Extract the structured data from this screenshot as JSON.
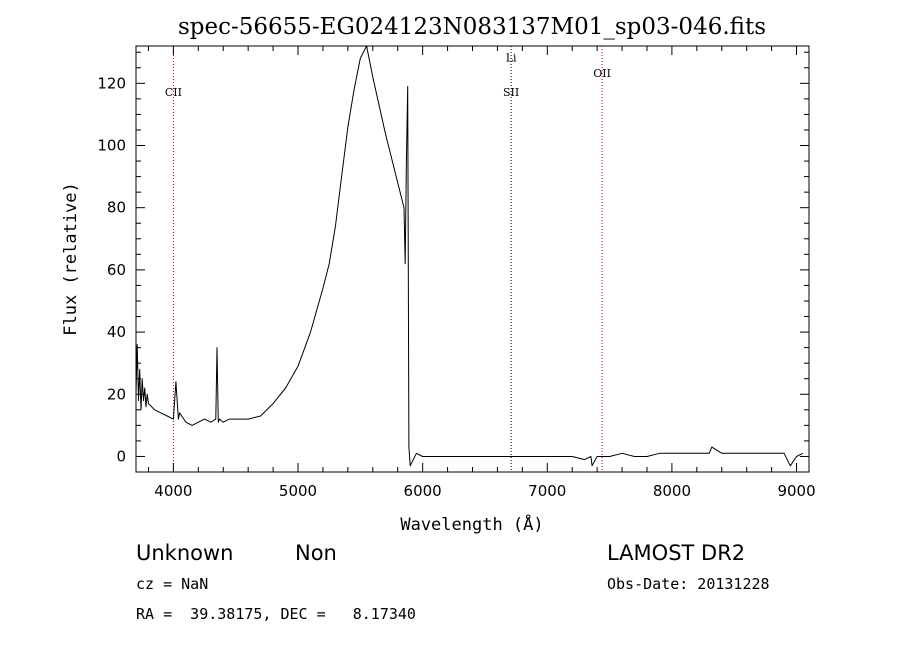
{
  "chart_data": {
    "type": "line",
    "title": "spec-56655-EG024123N083137M01_sp03-046.fits",
    "xlabel": "Wavelength (Å)",
    "ylabel": "Flux (relative)",
    "xlim": [
      3700,
      9100
    ],
    "ylim": [
      -5,
      132
    ],
    "x_ticks": [
      4000,
      5000,
      6000,
      7000,
      8000,
      9000
    ],
    "y_ticks": [
      0,
      20,
      40,
      60,
      80,
      100,
      120
    ],
    "grid": false,
    "line_color": "#000000",
    "series": [
      {
        "x": [
          3700,
          3710,
          3720,
          3730,
          3740,
          3750,
          3760,
          3770,
          3780,
          3790,
          3800,
          3850,
          3900,
          3950,
          4000,
          4020,
          4040,
          4050,
          4100,
          4150,
          4200,
          4250,
          4300,
          4340,
          4350,
          4360,
          4370,
          4400,
          4450,
          4500,
          4600,
          4700,
          4800,
          4900,
          5000,
          5100,
          5200,
          5250,
          5300,
          5350,
          5400,
          5450,
          5500,
          5550,
          5600,
          5700,
          5850,
          5860,
          5870,
          5880,
          5890,
          5900,
          5950,
          6000,
          6100,
          6200,
          6300,
          6400,
          6500,
          6600,
          6700,
          6800,
          6900,
          7000,
          7100,
          7200,
          7300,
          7350,
          7360,
          7400,
          7500,
          7600,
          7700,
          7800,
          7900,
          8000,
          8100,
          8200,
          8300,
          8320,
          8400,
          8500,
          8600,
          8700,
          8800,
          8900,
          8950,
          9000,
          9050
        ],
        "y": [
          20,
          36,
          18,
          28,
          15,
          25,
          18,
          22,
          16,
          20,
          17,
          15,
          14,
          13,
          12,
          24,
          12,
          14,
          11,
          10,
          11,
          12,
          11,
          12,
          35,
          11,
          12,
          11,
          12,
          12,
          12,
          13,
          17,
          22,
          29,
          40,
          54,
          62,
          74,
          90,
          106,
          118,
          128,
          132,
          122,
          104,
          80,
          62,
          95,
          119,
          3,
          -3,
          1,
          0,
          0,
          0,
          0,
          0,
          0,
          0,
          0,
          0,
          0,
          0,
          0,
          0,
          -1,
          0,
          -3,
          0,
          0,
          1,
          0,
          0,
          1,
          1,
          1,
          1,
          1,
          3,
          1,
          1,
          1,
          1,
          1,
          1,
          -3,
          0,
          1
        ]
      }
    ],
    "annotations": [
      {
        "label": "CII",
        "x": 4000,
        "style": "dotted",
        "color": "#cc0000",
        "label_y": 116
      },
      {
        "label": "SII",
        "x": 6710,
        "style": "dotted",
        "color": "#000000",
        "label_y": 116
      },
      {
        "label": "Li",
        "x": 6710,
        "style": "none",
        "color": "#000000",
        "label_y": 127
      },
      {
        "label": "OII",
        "x": 7440,
        "style": "dotted",
        "color": "#cc0000",
        "label_y": 122
      }
    ]
  },
  "info": {
    "class": "Unknown",
    "subclass": "Non",
    "survey": "LAMOST DR2",
    "cz": "cz = NaN",
    "obs_date": "Obs-Date: 20131228",
    "radec": "RA =  39.38175, DEC =   8.17340"
  }
}
